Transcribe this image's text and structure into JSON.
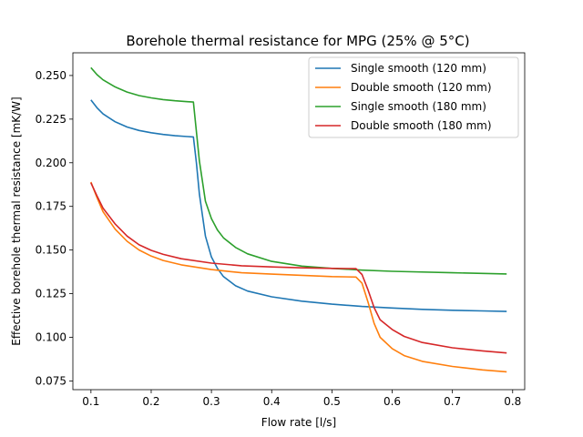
{
  "chart_data": {
    "type": "line",
    "title": "Borehole thermal resistance for MPG (25% @ 5°C)",
    "xlabel": "Flow rate [l/s]",
    "ylabel": "Effective borehole thermal resistance [mK/W]",
    "xlim": [
      0.07,
      0.82
    ],
    "ylim": [
      0.07,
      0.263
    ],
    "xticks": [
      {
        "value": 0.1,
        "label": "0.1"
      },
      {
        "value": 0.2,
        "label": "0.2"
      },
      {
        "value": 0.3,
        "label": "0.3"
      },
      {
        "value": 0.4,
        "label": "0.4"
      },
      {
        "value": 0.5,
        "label": "0.5"
      },
      {
        "value": 0.6,
        "label": "0.6"
      },
      {
        "value": 0.7,
        "label": "0.7"
      },
      {
        "value": 0.8,
        "label": "0.8"
      }
    ],
    "yticks": [
      {
        "value": 0.075,
        "label": "0.075"
      },
      {
        "value": 0.1,
        "label": "0.100"
      },
      {
        "value": 0.125,
        "label": "0.125"
      },
      {
        "value": 0.15,
        "label": "0.150"
      },
      {
        "value": 0.175,
        "label": "0.175"
      },
      {
        "value": 0.2,
        "label": "0.200"
      },
      {
        "value": 0.225,
        "label": "0.225"
      },
      {
        "value": 0.25,
        "label": "0.250"
      }
    ],
    "grid": false,
    "legend_position": "top-right",
    "series": [
      {
        "name": "Single smooth (120 mm)",
        "color": "#1f77b4",
        "points": [
          [
            0.1,
            0.236
          ],
          [
            0.11,
            0.2315
          ],
          [
            0.12,
            0.228
          ],
          [
            0.14,
            0.2235
          ],
          [
            0.16,
            0.2205
          ],
          [
            0.18,
            0.2185
          ],
          [
            0.2,
            0.2172
          ],
          [
            0.22,
            0.2162
          ],
          [
            0.24,
            0.2155
          ],
          [
            0.26,
            0.215
          ],
          [
            0.27,
            0.2148
          ],
          [
            0.275,
            0.2
          ],
          [
            0.28,
            0.182
          ],
          [
            0.29,
            0.158
          ],
          [
            0.3,
            0.146
          ],
          [
            0.31,
            0.1395
          ],
          [
            0.32,
            0.1348
          ],
          [
            0.34,
            0.1295
          ],
          [
            0.36,
            0.1265
          ],
          [
            0.4,
            0.1232
          ],
          [
            0.45,
            0.1207
          ],
          [
            0.5,
            0.119
          ],
          [
            0.55,
            0.1177
          ],
          [
            0.6,
            0.1168
          ],
          [
            0.65,
            0.116
          ],
          [
            0.7,
            0.1155
          ],
          [
            0.75,
            0.1151
          ],
          [
            0.79,
            0.1148
          ]
        ]
      },
      {
        "name": "Double smooth (120 mm)",
        "color": "#ff7f0e",
        "points": [
          [
            0.1,
            0.189
          ],
          [
            0.11,
            0.18
          ],
          [
            0.12,
            0.172
          ],
          [
            0.14,
            0.162
          ],
          [
            0.16,
            0.155
          ],
          [
            0.18,
            0.15
          ],
          [
            0.2,
            0.1465
          ],
          [
            0.22,
            0.144
          ],
          [
            0.25,
            0.1415
          ],
          [
            0.3,
            0.1388
          ],
          [
            0.35,
            0.137
          ],
          [
            0.4,
            0.1362
          ],
          [
            0.45,
            0.1355
          ],
          [
            0.5,
            0.1348
          ],
          [
            0.54,
            0.1345
          ],
          [
            0.55,
            0.131
          ],
          [
            0.56,
            0.12
          ],
          [
            0.57,
            0.108
          ],
          [
            0.58,
            0.1
          ],
          [
            0.6,
            0.0935
          ],
          [
            0.62,
            0.0895
          ],
          [
            0.65,
            0.0862
          ],
          [
            0.7,
            0.0833
          ],
          [
            0.75,
            0.0813
          ],
          [
            0.79,
            0.0802
          ]
        ]
      },
      {
        "name": "Single smooth (180 mm)",
        "color": "#2ca02c",
        "points": [
          [
            0.1,
            0.2545
          ],
          [
            0.11,
            0.2505
          ],
          [
            0.12,
            0.2475
          ],
          [
            0.14,
            0.2435
          ],
          [
            0.16,
            0.2405
          ],
          [
            0.18,
            0.2385
          ],
          [
            0.2,
            0.2372
          ],
          [
            0.22,
            0.2362
          ],
          [
            0.24,
            0.2355
          ],
          [
            0.26,
            0.235
          ],
          [
            0.27,
            0.2348
          ],
          [
            0.28,
            0.201
          ],
          [
            0.29,
            0.178
          ],
          [
            0.3,
            0.168
          ],
          [
            0.31,
            0.1615
          ],
          [
            0.32,
            0.157
          ],
          [
            0.34,
            0.1515
          ],
          [
            0.36,
            0.1478
          ],
          [
            0.4,
            0.1435
          ],
          [
            0.45,
            0.1408
          ],
          [
            0.5,
            0.1395
          ],
          [
            0.55,
            0.1385
          ],
          [
            0.6,
            0.1378
          ],
          [
            0.7,
            0.137
          ],
          [
            0.79,
            0.1363
          ]
        ]
      },
      {
        "name": "Double smooth (180 mm)",
        "color": "#d62728",
        "points": [
          [
            0.1,
            0.1885
          ],
          [
            0.11,
            0.181
          ],
          [
            0.12,
            0.174
          ],
          [
            0.14,
            0.165
          ],
          [
            0.16,
            0.158
          ],
          [
            0.18,
            0.153
          ],
          [
            0.2,
            0.1498
          ],
          [
            0.22,
            0.1475
          ],
          [
            0.25,
            0.145
          ],
          [
            0.3,
            0.1425
          ],
          [
            0.35,
            0.141
          ],
          [
            0.4,
            0.1403
          ],
          [
            0.45,
            0.1398
          ],
          [
            0.5,
            0.1395
          ],
          [
            0.54,
            0.1393
          ],
          [
            0.55,
            0.136
          ],
          [
            0.56,
            0.127
          ],
          [
            0.57,
            0.117
          ],
          [
            0.58,
            0.11
          ],
          [
            0.6,
            0.1045
          ],
          [
            0.62,
            0.1005
          ],
          [
            0.65,
            0.097
          ],
          [
            0.7,
            0.094
          ],
          [
            0.75,
            0.0922
          ],
          [
            0.79,
            0.091
          ]
        ]
      }
    ]
  }
}
